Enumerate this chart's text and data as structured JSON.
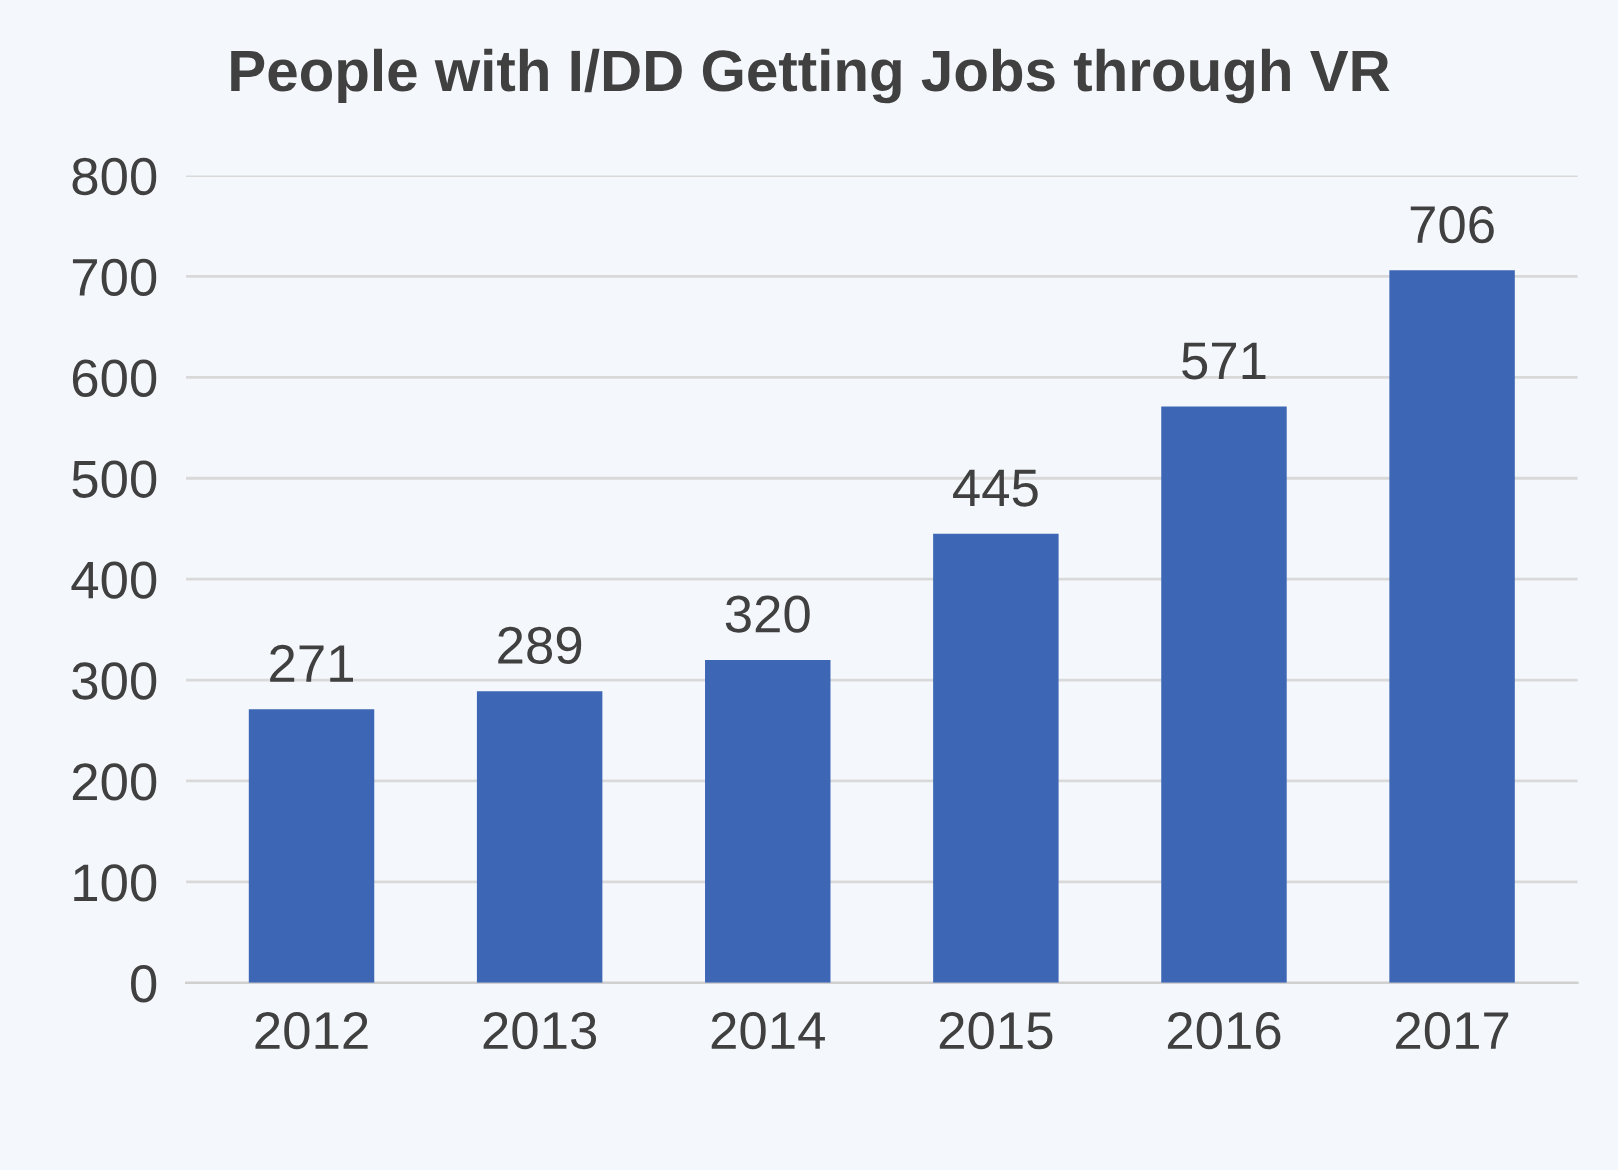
{
  "chart_data": {
    "type": "bar",
    "title": "People with I/DD Getting Jobs through VR",
    "categories": [
      "2012",
      "2013",
      "2014",
      "2015",
      "2016",
      "2017"
    ],
    "values": [
      271,
      289,
      320,
      445,
      571,
      706
    ],
    "color": "#3d66b5",
    "ylim": [
      0,
      800
    ],
    "yticks": [
      0,
      100,
      200,
      300,
      400,
      500,
      600,
      700,
      800
    ],
    "grid": "y",
    "data_labels": true
  }
}
